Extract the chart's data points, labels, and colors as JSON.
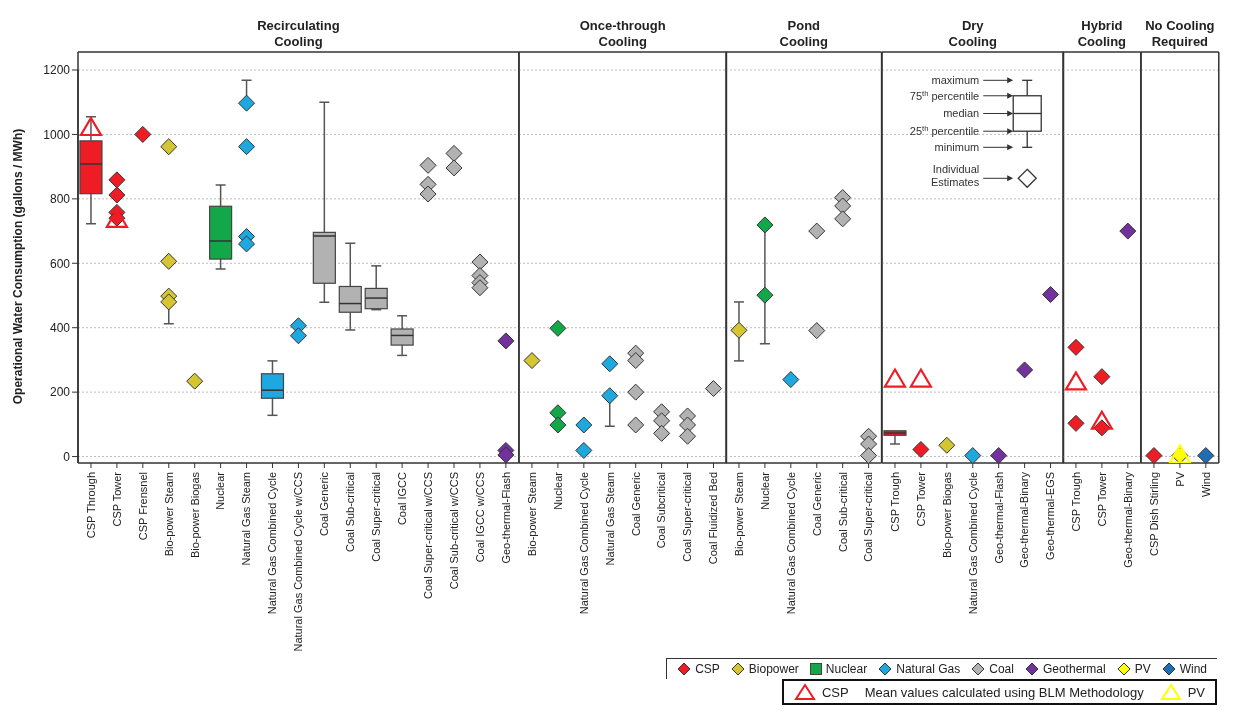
{
  "chart_data": [
    {
      "type": "box",
      "title": "Recirculating Cooling",
      "ylabel": "Operational Water Consumption (gallons / MWh)",
      "legend": "bottom right",
      "grid": "y",
      "categories": [
        "CSP Through",
        "CSP Tower",
        "CSP Frensnel",
        "Bio-power Steam",
        "Bio-power Biogas",
        "Nuclear",
        "Natural Gas Steam",
        "Natural Gas Combined Cycle",
        "Natural Gas Combined Cycle w/CCS",
        "Coal Generic",
        "Coal Sub-critical",
        "Coal Super-critical",
        "Coal IGCC",
        "Coal Super-critical w/CCS",
        "Coal Sub-critical w/CCS",
        "Coal IGCC w/CCS",
        "Geo-thermal-Flash"
      ],
      "ylim": [
        -20,
        1200
      ],
      "yticks": [
        0,
        200,
        400,
        600,
        800,
        1000,
        1200
      ],
      "annotations": [
        "Mean values calculated using BLM Methodology"
      ],
      "series": [
        {
          "type": "box",
          "color": "#ee1c25",
          "boxes": [
            {
              "low": 723,
              "q1": 816,
              "median": 908,
              "q3": 980,
              "high": 1055
            },
            null,
            null,
            null,
            null,
            null,
            null,
            null,
            null,
            null,
            null,
            null,
            null,
            null,
            null,
            null,
            null
          ]
        },
        {
          "type": "scatter",
          "name": "CSP",
          "color": "#ee1c25",
          "marker": "diamond",
          "values": [
            null,
            859,
            1000,
            null,
            null,
            null,
            null,
            null,
            null,
            null,
            null,
            null,
            null,
            null,
            null,
            null,
            null
          ]
        },
        {
          "type": "scatter",
          "color": "#ee1c25",
          "marker": "diamond",
          "values": [
            null,
            812,
            null,
            null,
            null,
            null,
            null,
            null,
            null,
            null,
            null,
            null,
            null,
            null,
            null,
            null,
            null
          ]
        },
        {
          "type": "scatter",
          "color": "#ee1c25",
          "marker": "diamond",
          "values": [
            null,
            758,
            null,
            null,
            null,
            null,
            null,
            null,
            null,
            null,
            null,
            null,
            null,
            null,
            null,
            null,
            null
          ]
        },
        {
          "type": "scatter",
          "color": "#ee1c25",
          "marker": "diamond",
          "values": [
            null,
            740,
            null,
            null,
            null,
            null,
            null,
            null,
            null,
            null,
            null,
            null,
            null,
            null,
            null,
            null,
            null
          ]
        },
        {
          "type": "scatter",
          "name": "Biopower",
          "color": "#d6c533",
          "marker": "diamond",
          "values": [
            null,
            null,
            null,
            962,
            234,
            null,
            null,
            null,
            null,
            null,
            null,
            null,
            null,
            null,
            null,
            null,
            null
          ]
        },
        {
          "type": "scatter",
          "color": "#d6c533",
          "marker": "diamond",
          "values": [
            null,
            null,
            null,
            606,
            null,
            null,
            null,
            null,
            null,
            null,
            null,
            null,
            null,
            null,
            null,
            null,
            null
          ]
        },
        {
          "type": "scatter",
          "color": "#d6c533",
          "marker": "diamond",
          "values": [
            null,
            null,
            null,
            498,
            null,
            null,
            null,
            null,
            null,
            null,
            null,
            null,
            null,
            null,
            null,
            null,
            null
          ]
        },
        {
          "type": "scatter",
          "color": "#d6c533",
          "marker": "diamond",
          "values": [
            null,
            null,
            null,
            480,
            null,
            null,
            null,
            null,
            null,
            null,
            null,
            null,
            null,
            null,
            null,
            null,
            null
          ],
          "errors": [
            null,
            null,
            null,
            [
              412,
              480
            ],
            null,
            null,
            null,
            null,
            null,
            null,
            null,
            null,
            null,
            null,
            null,
            null,
            null
          ]
        },
        {
          "type": "box",
          "name": "Nuclear",
          "color": "#12a84a",
          "boxes": [
            null,
            null,
            null,
            null,
            null,
            {
              "low": 582,
              "q1": 613,
              "median": 669,
              "q3": 777,
              "high": 843
            },
            null,
            null,
            null,
            null,
            null,
            null,
            null,
            null,
            null,
            null,
            null
          ]
        },
        {
          "type": "box",
          "color": "#1ea8e0",
          "boxes": [
            null,
            null,
            null,
            null,
            null,
            null,
            null,
            {
              "low": 128,
              "q1": 181,
              "median": 206,
              "q3": 257,
              "high": 297
            },
            null,
            null,
            null,
            null,
            null,
            null,
            null,
            null,
            null
          ]
        },
        {
          "type": "scatter",
          "name": "Natural Gas",
          "color": "#1ea8e0",
          "marker": "diamond",
          "values": [
            null,
            null,
            null,
            null,
            null,
            null,
            1097,
            null,
            406,
            null,
            null,
            null,
            null,
            null,
            null,
            null,
            null
          ],
          "errors": [
            null,
            null,
            null,
            null,
            null,
            null,
            [
              1097,
              1168
            ],
            null,
            null,
            null,
            null,
            null,
            null,
            null,
            null,
            null,
            null
          ]
        },
        {
          "type": "scatter",
          "color": "#1ea8e0",
          "marker": "diamond",
          "values": [
            null,
            null,
            null,
            null,
            null,
            null,
            962,
            null,
            375,
            null,
            null,
            null,
            null,
            null,
            null,
            null,
            null
          ]
        },
        {
          "type": "scatter",
          "color": "#1ea8e0",
          "marker": "diamond",
          "values": [
            null,
            null,
            null,
            null,
            null,
            null,
            683,
            null,
            null,
            null,
            null,
            null,
            null,
            null,
            null,
            null,
            null
          ]
        },
        {
          "type": "scatter",
          "color": "#1ea8e0",
          "marker": "diamond",
          "values": [
            null,
            null,
            null,
            null,
            null,
            null,
            660,
            null,
            null,
            null,
            null,
            null,
            null,
            null,
            null,
            null,
            null
          ]
        },
        {
          "type": "box",
          "color": "#b2b2b2",
          "boxes": [
            null,
            null,
            null,
            null,
            null,
            null,
            null,
            null,
            null,
            {
              "low": 479,
              "q1": 538,
              "median": 685,
              "q3": 696,
              "high": 1100
            },
            {
              "low": 393,
              "q1": 448,
              "median": 475,
              "q3": 528,
              "high": 662
            },
            {
              "low": 456,
              "q1": 459,
              "median": 492,
              "q3": 522,
              "high": 592
            },
            {
              "low": 314,
              "q1": 346,
              "median": 376,
              "q3": 396,
              "high": 437
            },
            null,
            null,
            null,
            null
          ]
        },
        {
          "type": "scatter",
          "name": "Coal",
          "color": "#b2b2b2",
          "marker": "diamond",
          "values": [
            null,
            null,
            null,
            null,
            null,
            null,
            null,
            null,
            null,
            null,
            null,
            null,
            null,
            904,
            941,
            604,
            null
          ]
        },
        {
          "type": "scatter",
          "color": "#b2b2b2",
          "marker": "diamond",
          "values": [
            null,
            null,
            null,
            null,
            null,
            null,
            null,
            null,
            null,
            null,
            null,
            null,
            null,
            845,
            896,
            562,
            null
          ]
        },
        {
          "type": "scatter",
          "color": "#b2b2b2",
          "marker": "diamond",
          "values": [
            null,
            null,
            null,
            null,
            null,
            null,
            null,
            null,
            null,
            null,
            null,
            null,
            null,
            815,
            null,
            540,
            null
          ]
        },
        {
          "type": "scatter",
          "color": "#b2b2b2",
          "marker": "diamond",
          "values": [
            null,
            null,
            null,
            null,
            null,
            null,
            null,
            null,
            null,
            null,
            null,
            null,
            null,
            null,
            null,
            524,
            null
          ]
        },
        {
          "type": "scatter",
          "name": "Geothermal",
          "color": "#72319c",
          "marker": "diamond",
          "values": [
            null,
            null,
            null,
            null,
            null,
            null,
            null,
            null,
            null,
            null,
            null,
            null,
            null,
            null,
            null,
            null,
            359
          ]
        },
        {
          "type": "scatter",
          "color": "#72319c",
          "marker": "diamond",
          "values": [
            null,
            null,
            null,
            null,
            null,
            null,
            null,
            null,
            null,
            null,
            null,
            null,
            null,
            null,
            null,
            null,
            19
          ]
        },
        {
          "type": "scatter",
          "color": "#72319c",
          "marker": "diamond",
          "values": [
            null,
            null,
            null,
            null,
            null,
            null,
            null,
            null,
            null,
            null,
            null,
            null,
            null,
            null,
            null,
            null,
            5
          ]
        },
        {
          "type": "scatter",
          "name": "CSP",
          "color": "#ee1c25",
          "marker": "triangle",
          "values": [
            1020,
            735,
            null,
            null,
            null,
            null,
            null,
            null,
            null,
            null,
            null,
            null,
            null,
            null,
            null,
            null,
            null
          ]
        }
      ]
    },
    {
      "type": "box",
      "title": "Once-through Cooling",
      "grid": "y",
      "tick_labels": "x",
      "categories": [
        "Bio-power Steam",
        "Nuclear",
        "Natural Gas Combined Cycle",
        "Natural Gas Steam",
        "Coal Generic",
        "Coal Subcritical",
        "Coal Super-critical",
        "Coal Fluidized Bed"
      ],
      "ylim": [
        -20,
        1200
      ],
      "yticks": [
        0,
        200,
        400,
        600,
        800,
        1000,
        1200
      ],
      "series": [
        {
          "type": "scatter",
          "color": "#d6c533",
          "marker": "diamond",
          "values": [
            298,
            null,
            null,
            null,
            null,
            null,
            null,
            null
          ]
        },
        {
          "type": "scatter",
          "color": "#12a84a",
          "marker": "diamond",
          "values": [
            null,
            398,
            null,
            null,
            null,
            null,
            null,
            null
          ]
        },
        {
          "type": "scatter",
          "color": "#12a84a",
          "marker": "diamond",
          "values": [
            null,
            136,
            null,
            null,
            null,
            null,
            null,
            null
          ]
        },
        {
          "type": "scatter",
          "color": "#12a84a",
          "marker": "diamond",
          "values": [
            null,
            98,
            null,
            null,
            null,
            null,
            null,
            null
          ]
        },
        {
          "type": "scatter",
          "color": "#1ea8e0",
          "marker": "diamond",
          "values": [
            null,
            null,
            98,
            288,
            null,
            null,
            null,
            null
          ]
        },
        {
          "type": "scatter",
          "color": "#1ea8e0",
          "marker": "diamond",
          "values": [
            null,
            null,
            19,
            189,
            null,
            null,
            null,
            null
          ],
          "errors": [
            null,
            null,
            null,
            [
              94,
              189
            ],
            null,
            null,
            null,
            null
          ]
        },
        {
          "type": "scatter",
          "color": "#b2b2b2",
          "marker": "diamond",
          "values": [
            null,
            null,
            null,
            null,
            321,
            139,
            126,
            211
          ]
        },
        {
          "type": "scatter",
          "color": "#b2b2b2",
          "marker": "diamond",
          "values": [
            null,
            null,
            null,
            null,
            298,
            111,
            98,
            null
          ]
        },
        {
          "type": "scatter",
          "color": "#b2b2b2",
          "marker": "diamond",
          "values": [
            null,
            null,
            null,
            null,
            200,
            72,
            63,
            null
          ]
        },
        {
          "type": "scatter",
          "color": "#b2b2b2",
          "marker": "diamond",
          "values": [
            null,
            null,
            null,
            null,
            98,
            null,
            null,
            null
          ]
        }
      ]
    },
    {
      "type": "box",
      "title": "Pond Cooling",
      "grid": "y",
      "tick_labels": "x",
      "categories": [
        "Bio-power Steam",
        "Nuclear",
        "Natural Gas Combined Cycle",
        "Coal Generic",
        "Coal Sub-critical",
        "Coal Super-critical"
      ],
      "ylim": [
        -20,
        1200
      ],
      "yticks": [
        0,
        200,
        400,
        600,
        800,
        1000,
        1200
      ],
      "series": [
        {
          "type": "scatter",
          "color": "#d6c533",
          "marker": "diamond",
          "values": [
            392,
            null,
            null,
            null,
            null,
            null
          ],
          "errors": [
            [
              297,
              480
            ],
            null,
            null,
            null,
            null,
            null
          ]
        },
        {
          "type": "scatter",
          "color": "#12a84a",
          "marker": "diamond",
          "values": [
            null,
            719,
            null,
            null,
            null,
            null
          ],
          "errors": [
            null,
            [
              350,
              719
            ],
            null,
            null,
            null,
            null
          ]
        },
        {
          "type": "scatter",
          "color": "#12a84a",
          "marker": "diamond",
          "values": [
            null,
            501,
            null,
            null,
            null,
            null
          ]
        },
        {
          "type": "scatter",
          "color": "#1ea8e0",
          "marker": "diamond",
          "values": [
            null,
            null,
            239,
            null,
            null,
            null
          ]
        },
        {
          "type": "scatter",
          "color": "#b2b2b2",
          "marker": "diamond",
          "values": [
            null,
            null,
            null,
            700,
            804,
            63
          ]
        },
        {
          "type": "scatter",
          "color": "#b2b2b2",
          "marker": "diamond",
          "values": [
            null,
            null,
            null,
            391,
            778,
            39
          ]
        },
        {
          "type": "scatter",
          "color": "#b2b2b2",
          "marker": "diamond",
          "values": [
            null,
            null,
            null,
            null,
            738,
            3
          ]
        }
      ]
    },
    {
      "type": "box",
      "title": "Dry Cooling",
      "grid": "y",
      "tick_labels": "x",
      "categories": [
        "CSP Trough",
        "CSP Tower",
        "Bio-power Biogas",
        "Natural Gas Combined Cycle",
        "Geo-thermal-Flash",
        "Geo-thermal-Binary",
        "Geo-thermal-EGS"
      ],
      "ylim": [
        -20,
        1200
      ],
      "yticks": [
        0,
        200,
        400,
        600,
        800,
        1000,
        1200
      ],
      "annotations": [
        "maximum",
        "75$^{th}$ percentile",
        "median",
        "25$^{th}$ percentile",
        "minimum",
        "Individual Estimates"
      ],
      "series": [
        {
          "type": "box",
          "color": "#ee1c25",
          "boxes": [
            {
              "low": 39,
              "q1": 66,
              "median": 73,
              "q3": 80,
              "high": 80
            },
            null,
            null,
            null,
            null,
            null,
            null
          ]
        },
        {
          "type": "scatter",
          "color": "#ee1c25",
          "marker": "diamond",
          "values": [
            null,
            22,
            null,
            null,
            null,
            null,
            null
          ]
        },
        {
          "type": "scatter",
          "color": "#d6c533",
          "marker": "diamond",
          "values": [
            null,
            null,
            35,
            null,
            null,
            null,
            null
          ]
        },
        {
          "type": "scatter",
          "color": "#1ea8e0",
          "marker": "diamond",
          "values": [
            null,
            null,
            null,
            3,
            null,
            null,
            null
          ]
        },
        {
          "type": "scatter",
          "color": "#72319c",
          "marker": "diamond",
          "values": [
            null,
            null,
            null,
            null,
            3,
            269,
            503
          ]
        },
        {
          "type": "scatter",
          "color": "#ee1c25",
          "marker": "triangle",
          "values": [
            239,
            239,
            null,
            null,
            null,
            null,
            null
          ]
        }
      ]
    },
    {
      "type": "box",
      "title": "Hybrid Cooling",
      "grid": "y",
      "tick_labels": "x",
      "categories": [
        "CSP Trough",
        "CSP Tower",
        "Geo-thermal-Binary"
      ],
      "ylim": [
        -20,
        1200
      ],
      "yticks": [
        0,
        200,
        400,
        600,
        800,
        1000,
        1200
      ],
      "series": [
        {
          "type": "scatter",
          "color": "#ee1c25",
          "marker": "diamond",
          "values": [
            339,
            248,
            null
          ]
        },
        {
          "type": "scatter",
          "color": "#ee1c25",
          "marker": "diamond",
          "values": [
            103,
            89,
            null
          ]
        },
        {
          "type": "scatter",
          "color": "#72319c",
          "marker": "diamond",
          "values": [
            null,
            null,
            700
          ]
        },
        {
          "type": "scatter",
          "color": "#ee1c25",
          "marker": "triangle",
          "values": [
            230,
            108,
            null
          ]
        }
      ]
    },
    {
      "type": "box",
      "title": "No Cooling Required",
      "grid": "y",
      "tick_labels": "x",
      "legend": "bottom left",
      "categories": [
        "CSP Dish Stirling",
        "PV",
        "Wind"
      ],
      "ylim": [
        -20,
        1200
      ],
      "yticks": [
        0,
        200,
        400,
        600,
        800,
        1000,
        1200
      ],
      "series": [
        {
          "type": "scatter",
          "color": "#ee1c25",
          "marker": "diamond",
          "values": [
            3,
            null,
            null
          ]
        },
        {
          "type": "scatter",
          "name": "PV",
          "color": "#ffff00",
          "marker": "diamond",
          "values": [
            null,
            3,
            null
          ]
        },
        {
          "type": "scatter",
          "name": "Wind",
          "color": "#1f6eb4",
          "marker": "diamond",
          "values": [
            null,
            null,
            3
          ]
        },
        {
          "type": "scatter",
          "name": "PV",
          "color": "#ffff00",
          "marker": "triangle",
          "values": [
            null,
            3,
            null
          ]
        }
      ]
    }
  ]
}
